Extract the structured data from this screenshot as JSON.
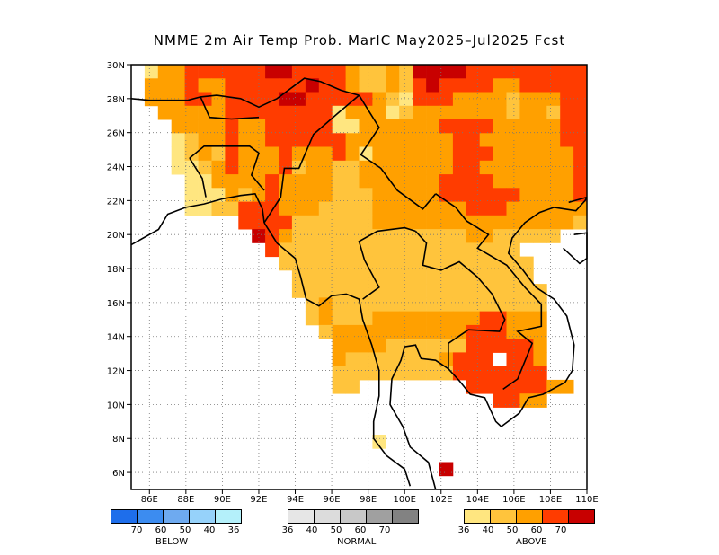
{
  "title": "NMME 2m Air Temp Prob. MarIC  May2025–Jul2025 Fcst",
  "map": {
    "lon_range": [
      85,
      110
    ],
    "lat_range": [
      5,
      30
    ],
    "x_ticks": [
      "86E",
      "88E",
      "90E",
      "92E",
      "94E",
      "96E",
      "98E",
      "100E",
      "102E",
      "104E",
      "106E",
      "108E",
      "110E"
    ],
    "y_ticks": [
      "6N",
      "8N",
      "10N",
      "12N",
      "14N",
      "16N",
      "18N",
      "20N",
      "22N",
      "24N",
      "26N",
      "28N",
      "30N"
    ],
    "grid": "dotted"
  },
  "colors": {
    "above_36": "#ffe680",
    "above_40": "#ffc43c",
    "above_50": "#ffa000",
    "above_60": "#ff3c00",
    "above_70": "#c80000"
  },
  "legend": {
    "below": {
      "caption": "BELOW",
      "labels": [
        "70",
        "60",
        "50",
        "40",
        "36"
      ],
      "colors": [
        "#1e6eeb",
        "#3c8cf0",
        "#6eaaf0",
        "#96d2fa",
        "#b4f0fa"
      ]
    },
    "normal": {
      "caption": "NORMAL",
      "labels": [
        "36",
        "40",
        "50",
        "60",
        "70"
      ],
      "colors": [
        "#e6e6e6",
        "#dcdcdc",
        "#c8c8c8",
        "#a0a0a0",
        "#828282"
      ]
    },
    "above": {
      "caption": "ABOVE",
      "labels": [
        "36",
        "40",
        "50",
        "60",
        "70"
      ],
      "colors": [
        "#ffe680",
        "#ffc43c",
        "#ffa000",
        "#ff3c00",
        "#c80000"
      ]
    }
  },
  "grid_cells": {
    "description_codes": "1=36-40 above, 2=40-50 above, 3=50-60 above, 4=60-70 above, 5=70+ above, 0=none",
    "rows": [
      "0133444444554444322325555444444444",
      "0333433444444544322324544443344444",
      "0333443444455444443214443333233344",
      "0033333444444441333123333333233244",
      "0003333433444441133333344443333344",
      "0001233433444444333333334433333344",
      "0001232433343334313333334443333334",
      "0001123433342332233333334433333334",
      "0000113333433332233333344443333334",
      "0000111323433332223333344444433334",
      "0000112244433322223333333444333333",
      "0000000044442222223333333333333332",
      "0000000005432222222222222332222200",
      "0000000000422222222222222222200000",
      "0000000000022222222222222222220000",
      "0000000000002222222222222222220000",
      "0000000000002222222222222222222000",
      "0000000000000232222222222222222000",
      "0000000000000232223333333344333000",
      "0000000000000023333333333444333000",
      "0000000000000003333222222444443000",
      "0000000000000003222222234440443000",
      "0000000000000002222222224444444000",
      "0000000000000002200000000444444330",
      "0000000000000000000000000004433000",
      "0000000000000000000000000000000000",
      "0000000000000000000000000000000000",
      "0000000000000000001000000000000000",
      "0000000000000000000000000000000000",
      "0000000000000000000000050000000000",
      "0000000000000000000000000000000000"
    ]
  }
}
